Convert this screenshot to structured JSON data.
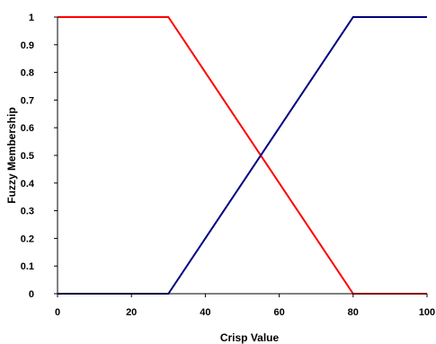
{
  "chart_data": {
    "type": "line",
    "xlabel": "Crisp Value",
    "ylabel": "Fuzzy Membership",
    "xlim": [
      0,
      100
    ],
    "ylim": [
      0,
      1
    ],
    "x_ticks": [
      0,
      20,
      40,
      60,
      80,
      100
    ],
    "y_ticks": [
      0,
      0.1,
      0.2,
      0.3,
      0.4,
      0.5,
      0.6,
      0.7,
      0.8,
      0.9,
      1
    ],
    "x_tick_labels": [
      "0",
      "20",
      "40",
      "60",
      "80",
      "100"
    ],
    "y_tick_labels": [
      "0",
      "0.1",
      "0.2",
      "0.3",
      "0.4",
      "0.5",
      "0.6",
      "0.7",
      "0.8",
      "0.9",
      "1"
    ],
    "grid": false,
    "legend": false,
    "series": [
      {
        "color": "#ff0000",
        "x": [
          0,
          30,
          80,
          100
        ],
        "y": [
          1,
          1,
          0,
          0
        ]
      },
      {
        "color": "#000080",
        "x": [
          0,
          30,
          80,
          100
        ],
        "y": [
          0,
          0,
          1,
          1
        ]
      }
    ]
  }
}
